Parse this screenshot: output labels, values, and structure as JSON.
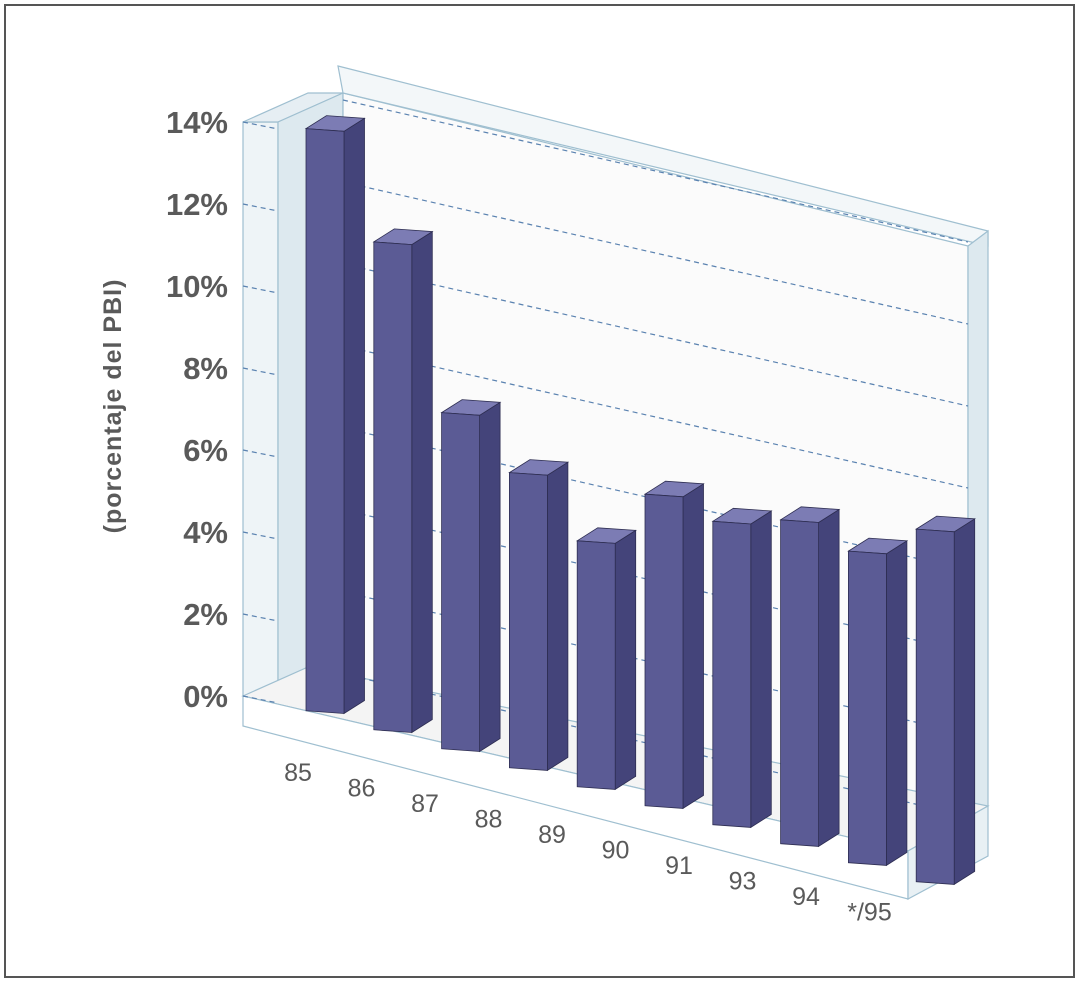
{
  "chart_data": {
    "type": "bar",
    "categories": [
      "85",
      "86",
      "87",
      "88",
      "89",
      "90",
      "91",
      "93",
      "94",
      "*/95"
    ],
    "values": [
      14.2,
      11.9,
      8.2,
      7.2,
      6.0,
      7.6,
      7.4,
      7.9,
      7.6,
      8.6
    ],
    "yticks": [
      "0%",
      "2%",
      "4%",
      "6%",
      "8%",
      "10%",
      "12%",
      "14%"
    ],
    "ylabel": "(porcentaje del PBI)",
    "xlabel": "",
    "title": "",
    "ylim": [
      0,
      14
    ],
    "grid": true,
    "legend": "none",
    "three_d": true,
    "colors": {
      "bar_front": "#5b5b95",
      "bar_side": "#44447a",
      "bar_top": "#7c7cb4",
      "walls": "#9fbfd0",
      "grid": "#5a82b0"
    }
  }
}
